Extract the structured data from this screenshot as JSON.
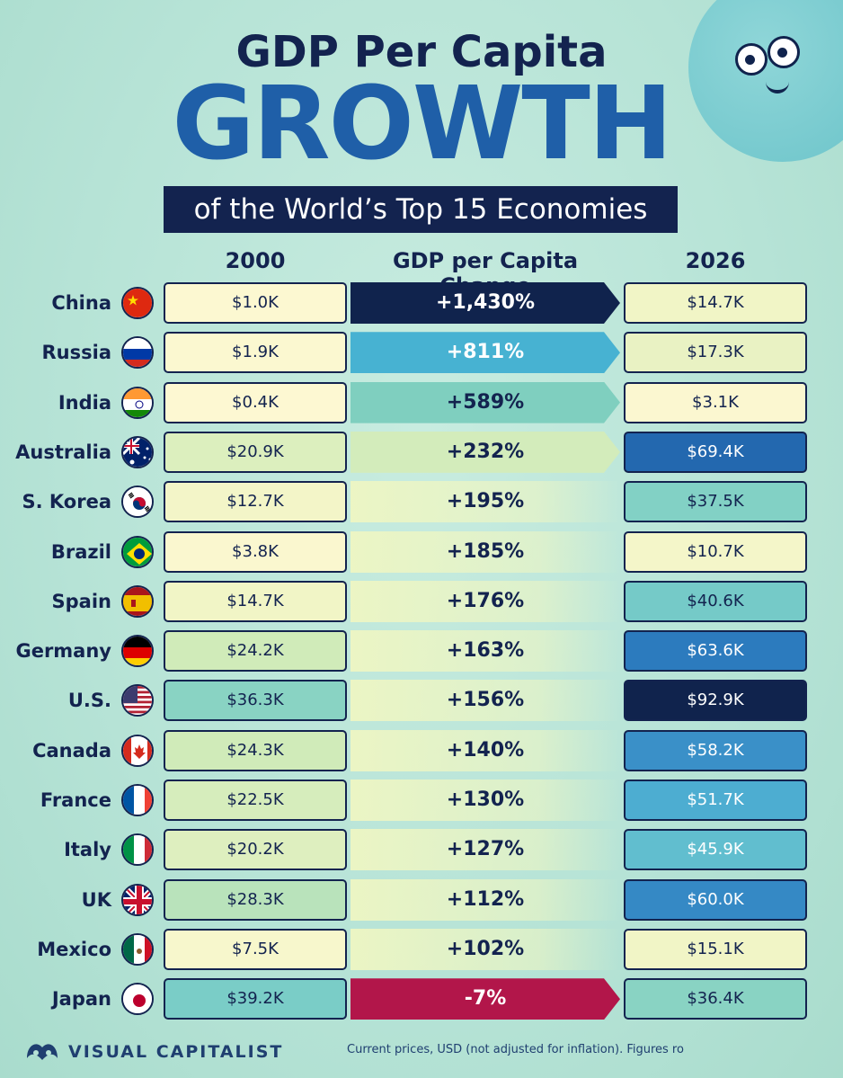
{
  "header": {
    "title_line1": "GDP Per Capita",
    "title_line2": "GROWTH",
    "subtitle": "of the World’s Top 15 Economies"
  },
  "columns": {
    "left": "2000",
    "middle": "GDP per Capita Change",
    "right": "2026"
  },
  "colors": {
    "dark_navy": "#13234f",
    "positive_max": "#10234d",
    "negative": "#b2164a",
    "cream": "#fdf8d2"
  },
  "chart_data": {
    "type": "table",
    "columns": [
      "Country",
      "2000",
      "GDP per Capita Change",
      "2026"
    ],
    "rows": [
      {
        "country": "China",
        "flag": "china-flag-icon",
        "v2000": "$1.0K",
        "change": "+1,430%",
        "change_value": 1430,
        "v2026": "$14.7K",
        "n2000": 1.0,
        "n2026": 14.7
      },
      {
        "country": "Russia",
        "flag": "russia-flag-icon",
        "v2000": "$1.9K",
        "change": "+811%",
        "change_value": 811,
        "v2026": "$17.3K",
        "n2000": 1.9,
        "n2026": 17.3
      },
      {
        "country": "India",
        "flag": "india-flag-icon",
        "v2000": "$0.4K",
        "change": "+589%",
        "change_value": 589,
        "v2026": "$3.1K",
        "n2000": 0.4,
        "n2026": 3.1
      },
      {
        "country": "Australia",
        "flag": "australia-flag-icon",
        "v2000": "$20.9K",
        "change": "+232%",
        "change_value": 232,
        "v2026": "$69.4K",
        "n2000": 20.9,
        "n2026": 69.4
      },
      {
        "country": "S. Korea",
        "flag": "south-korea-flag-icon",
        "v2000": "$12.7K",
        "change": "+195%",
        "change_value": 195,
        "v2026": "$37.5K",
        "n2000": 12.7,
        "n2026": 37.5
      },
      {
        "country": "Brazil",
        "flag": "brazil-flag-icon",
        "v2000": "$3.8K",
        "change": "+185%",
        "change_value": 185,
        "v2026": "$10.7K",
        "n2000": 3.8,
        "n2026": 10.7
      },
      {
        "country": "Spain",
        "flag": "spain-flag-icon",
        "v2000": "$14.7K",
        "change": "+176%",
        "change_value": 176,
        "v2026": "$40.6K",
        "n2000": 14.7,
        "n2026": 40.6
      },
      {
        "country": "Germany",
        "flag": "germany-flag-icon",
        "v2000": "$24.2K",
        "change": "+163%",
        "change_value": 163,
        "v2026": "$63.6K",
        "n2000": 24.2,
        "n2026": 63.6
      },
      {
        "country": "U.S.",
        "flag": "us-flag-icon",
        "v2000": "$36.3K",
        "change": "+156%",
        "change_value": 156,
        "v2026": "$92.9K",
        "n2000": 36.3,
        "n2026": 92.9
      },
      {
        "country": "Canada",
        "flag": "canada-flag-icon",
        "v2000": "$24.3K",
        "change": "+140%",
        "change_value": 140,
        "v2026": "$58.2K",
        "n2000": 24.3,
        "n2026": 58.2
      },
      {
        "country": "France",
        "flag": "france-flag-icon",
        "v2000": "$22.5K",
        "change": "+130%",
        "change_value": 130,
        "v2026": "$51.7K",
        "n2000": 22.5,
        "n2026": 51.7
      },
      {
        "country": "Italy",
        "flag": "italy-flag-icon",
        "v2000": "$20.2K",
        "change": "+127%",
        "change_value": 127,
        "v2026": "$45.9K",
        "n2000": 20.2,
        "n2026": 45.9
      },
      {
        "country": "UK",
        "flag": "uk-flag-icon",
        "v2000": "$28.3K",
        "change": "+112%",
        "change_value": 112,
        "v2026": "$60.0K",
        "n2000": 28.3,
        "n2026": 60.0
      },
      {
        "country": "Mexico",
        "flag": "mexico-flag-icon",
        "v2000": "$7.5K",
        "change": "+102%",
        "change_value": 102,
        "v2026": "$15.1K",
        "n2000": 7.5,
        "n2026": 15.1
      },
      {
        "country": "Japan",
        "flag": "japan-flag-icon",
        "v2000": "$39.2K",
        "change": "-7%",
        "change_value": -7,
        "v2026": "$36.4K",
        "n2000": 39.2,
        "n2026": 36.4
      }
    ]
  },
  "footer": {
    "brand": "VISUAL CAPITALIST",
    "brand_icon": "visual-capitalist-logo-icon",
    "note": "Current prices, USD (not adjusted for inflation). Figures ro"
  }
}
